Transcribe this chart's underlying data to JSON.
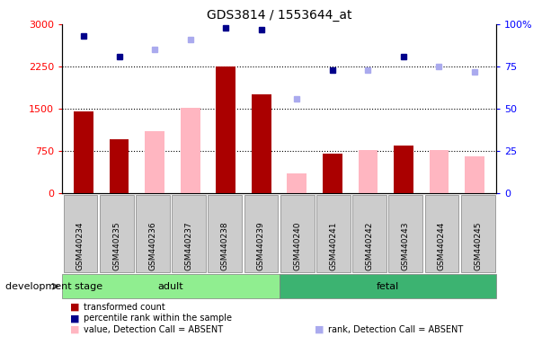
{
  "title": "GDS3814 / 1553644_at",
  "samples": [
    "GSM440234",
    "GSM440235",
    "GSM440236",
    "GSM440237",
    "GSM440238",
    "GSM440239",
    "GSM440240",
    "GSM440241",
    "GSM440242",
    "GSM440243",
    "GSM440244",
    "GSM440245"
  ],
  "bar_present_values": [
    1450,
    950,
    null,
    null,
    2250,
    1750,
    null,
    700,
    null,
    850,
    null,
    null
  ],
  "bar_absent_values": [
    null,
    null,
    1100,
    1520,
    null,
    null,
    350,
    null,
    760,
    null,
    760,
    660
  ],
  "rank_present_pct": [
    93,
    81,
    null,
    null,
    98,
    97,
    null,
    73,
    null,
    81,
    null,
    null
  ],
  "rank_absent_pct": [
    null,
    null,
    85,
    91,
    null,
    null,
    56,
    null,
    73,
    null,
    75,
    72
  ],
  "groups": [
    "adult",
    "adult",
    "adult",
    "adult",
    "adult",
    "adult",
    "fetal",
    "fetal",
    "fetal",
    "fetal",
    "fetal",
    "fetal"
  ],
  "group_colors": {
    "adult": "#90EE90",
    "fetal": "#3CB371"
  },
  "bar_present_color": "#AA0000",
  "bar_absent_color": "#FFB6C1",
  "rank_present_color": "#00008B",
  "rank_absent_color": "#AAAAEE",
  "ylim_left": [
    0,
    3000
  ],
  "ylim_right": [
    0,
    100
  ],
  "yticks_left": [
    0,
    750,
    1500,
    2250,
    3000
  ],
  "yticks_right": [
    0,
    25,
    50,
    75,
    100
  ],
  "grid_values": [
    750,
    1500,
    2250
  ],
  "bar_width": 0.55,
  "tick_bg_color": "#CCCCCC",
  "legend_items": [
    {
      "label": "transformed count",
      "color": "#AA0000",
      "marker": "s"
    },
    {
      "label": "percentile rank within the sample",
      "color": "#00008B",
      "marker": "s"
    },
    {
      "label": "value, Detection Call = ABSENT",
      "color": "#FFB6C1",
      "marker": "s"
    },
    {
      "label": "rank, Detection Call = ABSENT",
      "color": "#AAAAEE",
      "marker": "s"
    }
  ]
}
